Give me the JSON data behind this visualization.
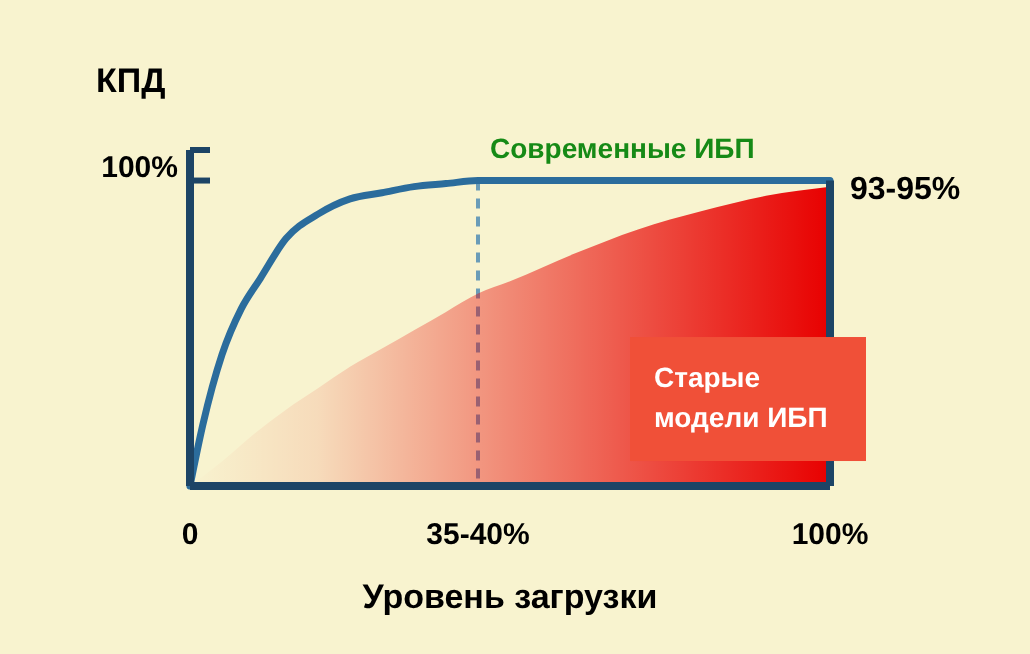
{
  "chart_data": {
    "type": "line",
    "ylabel": "КПД",
    "xlabel": "Уровень загрузки",
    "xlim": [
      0,
      100
    ],
    "xticks": [
      0,
      {
        "value": 45,
        "label": "35-40%"
      },
      {
        "value": 100,
        "label": "100%"
      }
    ],
    "ylim": [
      0,
      110
    ],
    "yticks": [
      {
        "value": 100,
        "label": "100%"
      },
      {
        "value": 110,
        "label": null
      }
    ],
    "grid": false,
    "series": [
      {
        "name": "Старые модели ИБП",
        "type": "area",
        "color": "#e80000",
        "x": [
          0,
          5,
          10,
          15,
          20,
          25,
          30,
          35,
          40,
          45,
          50,
          60,
          70,
          80,
          90,
          100
        ],
        "values": [
          0,
          8,
          17,
          25,
          32,
          39,
          45,
          51,
          57,
          63,
          67,
          76,
          84,
          90,
          95,
          98
        ]
      },
      {
        "name": "Современные ИБП",
        "type": "line",
        "color": "#2b6c9c",
        "x": [
          0,
          2,
          5,
          8,
          11,
          15,
          20,
          25,
          30,
          35,
          40,
          45,
          50,
          60,
          70,
          80,
          90,
          100
        ],
        "values": [
          0,
          20,
          43,
          58,
          68,
          81,
          89,
          94,
          96,
          98,
          99,
          100,
          100,
          100,
          100,
          100,
          100,
          100
        ]
      }
    ],
    "ref_lines": [
      {
        "axis": "x",
        "value": 45,
        "line_style": "dashed",
        "color": "#6a9cb8"
      }
    ],
    "annotations": [
      {
        "text": "93-95%",
        "x": 100,
        "y": 98
      }
    ]
  }
}
